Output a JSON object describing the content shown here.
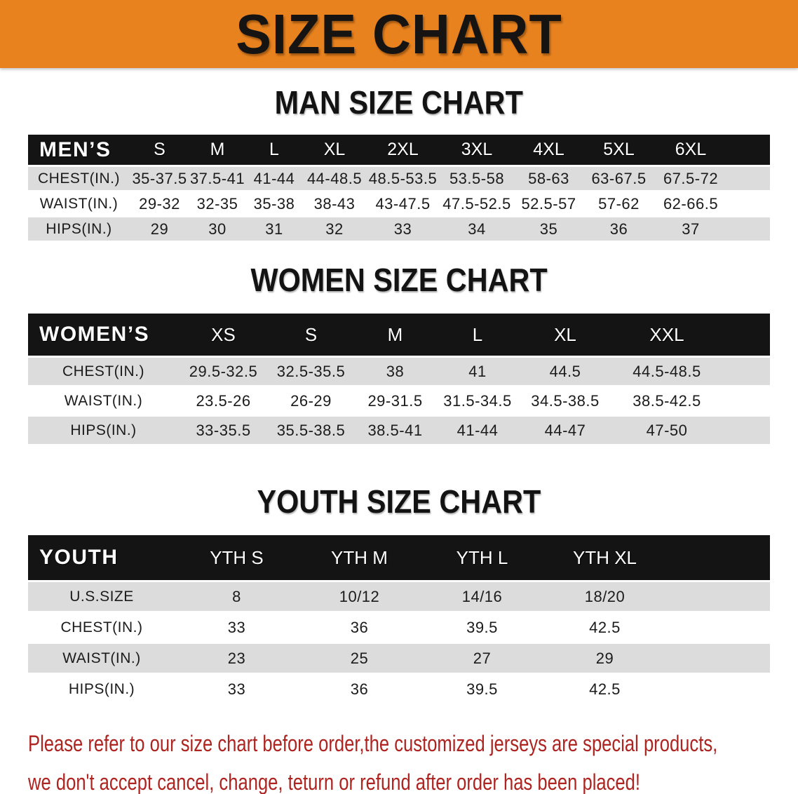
{
  "banner": {
    "title": "SIZE CHART"
  },
  "colors": {
    "banner_orange": "#E8821F",
    "bar_black": "#141414",
    "row_gray": "#DCDCDC",
    "disclaimer_red": "#AE2420"
  },
  "men": {
    "heading": "MAN SIZE CHART",
    "group_label": "MEN’S",
    "sizes": [
      "S",
      "M",
      "L",
      "XL",
      "2XL",
      "3XL",
      "4XL",
      "5XL",
      "6XL"
    ],
    "rows": [
      {
        "label": "CHEST(IN.)",
        "values": [
          "35-37.5",
          "37.5-41",
          "41-44",
          "44-48.5",
          "48.5-53.5",
          "53.5-58",
          "58-63",
          "63-67.5",
          "67.5-72"
        ]
      },
      {
        "label": "WAIST(IN.)",
        "values": [
          "29-32",
          "32-35",
          "35-38",
          "38-43",
          "43-47.5",
          "47.5-52.5",
          "52.5-57",
          "57-62",
          "62-66.5"
        ]
      },
      {
        "label": "HIPS(IN.)",
        "values": [
          "29",
          "30",
          "31",
          "32",
          "33",
          "34",
          "35",
          "36",
          "37"
        ]
      }
    ]
  },
  "women": {
    "heading": "WOMEN SIZE CHART",
    "group_label": "WOMEN’S",
    "sizes": [
      "XS",
      "S",
      "M",
      "L",
      "XL",
      "XXL"
    ],
    "rows": [
      {
        "label": "CHEST(IN.)",
        "values": [
          "29.5-32.5",
          "32.5-35.5",
          "38",
          "41",
          "44.5",
          "44.5-48.5"
        ]
      },
      {
        "label": "WAIST(IN.)",
        "values": [
          "23.5-26",
          "26-29",
          "29-31.5",
          "31.5-34.5",
          "34.5-38.5",
          "38.5-42.5"
        ]
      },
      {
        "label": "HIPS(IN.)",
        "values": [
          "33-35.5",
          "35.5-38.5",
          "38.5-41",
          "41-44",
          "44-47",
          "47-50"
        ]
      }
    ]
  },
  "youth": {
    "heading": "YOUTH SIZE CHART",
    "group_label": "YOUTH",
    "sizes": [
      "YTH S",
      "YTH M",
      "YTH L",
      "YTH XL"
    ],
    "rows": [
      {
        "label": "U.S.SIZE",
        "values": [
          "8",
          "10/12",
          "14/16",
          "18/20"
        ]
      },
      {
        "label": "CHEST(IN.)",
        "values": [
          "33",
          "36",
          "39.5",
          "42.5"
        ]
      },
      {
        "label": "WAIST(IN.)",
        "values": [
          "23",
          "25",
          "27",
          "29"
        ]
      },
      {
        "label": "HIPS(IN.)",
        "values": [
          "33",
          "36",
          "39.5",
          "42.5"
        ]
      }
    ]
  },
  "disclaimer": {
    "line1": "Please refer to our size chart before order,the customized jerseys are special products,",
    "line2": "we don't accept cancel, change, teturn or refund after order has been placed!"
  }
}
